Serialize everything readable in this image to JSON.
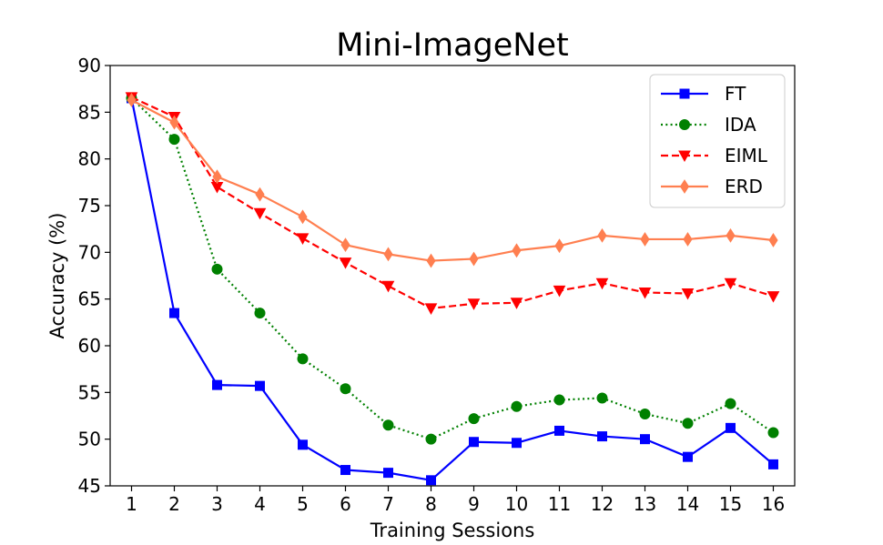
{
  "chart_data": {
    "type": "line",
    "title": "Mini-ImageNet",
    "xlabel": "Training Sessions",
    "ylabel": "Accuracy (%)",
    "x": [
      1,
      2,
      3,
      4,
      5,
      6,
      7,
      8,
      9,
      10,
      11,
      12,
      13,
      14,
      15,
      16
    ],
    "xlim": [
      0.5,
      16.5
    ],
    "ylim": [
      45,
      90
    ],
    "yticks": [
      45,
      50,
      55,
      60,
      65,
      70,
      75,
      80,
      85,
      90
    ],
    "grid": false,
    "legend_position": "top-right",
    "series": [
      {
        "name": "FT",
        "color": "#0000ff",
        "line_style": "solid",
        "marker": "square",
        "values": [
          86.5,
          63.5,
          55.8,
          55.7,
          49.4,
          46.7,
          46.4,
          45.6,
          49.7,
          49.6,
          50.9,
          50.3,
          50.0,
          48.1,
          51.2,
          47.3
        ]
      },
      {
        "name": "IDA",
        "color": "#008000",
        "line_style": "dotted",
        "marker": "circle",
        "values": [
          86.5,
          82.1,
          68.2,
          63.5,
          58.6,
          55.4,
          51.5,
          50.0,
          52.2,
          53.5,
          54.2,
          54.4,
          52.7,
          51.7,
          53.8,
          50.7
        ]
      },
      {
        "name": "EIML",
        "color": "#ff0000",
        "line_style": "dashed",
        "marker": "triangle-down",
        "values": [
          86.6,
          84.5,
          77.0,
          74.2,
          71.5,
          68.9,
          66.4,
          64.0,
          64.5,
          64.6,
          65.9,
          66.7,
          65.7,
          65.6,
          66.7,
          65.3
        ]
      },
      {
        "name": "ERD",
        "color": "#ff7f50",
        "line_style": "solid",
        "marker": "diamond",
        "values": [
          86.3,
          83.9,
          78.1,
          76.2,
          73.8,
          70.8,
          69.8,
          69.1,
          69.3,
          70.2,
          70.7,
          71.8,
          71.4,
          71.4,
          71.8,
          71.3
        ]
      }
    ]
  }
}
